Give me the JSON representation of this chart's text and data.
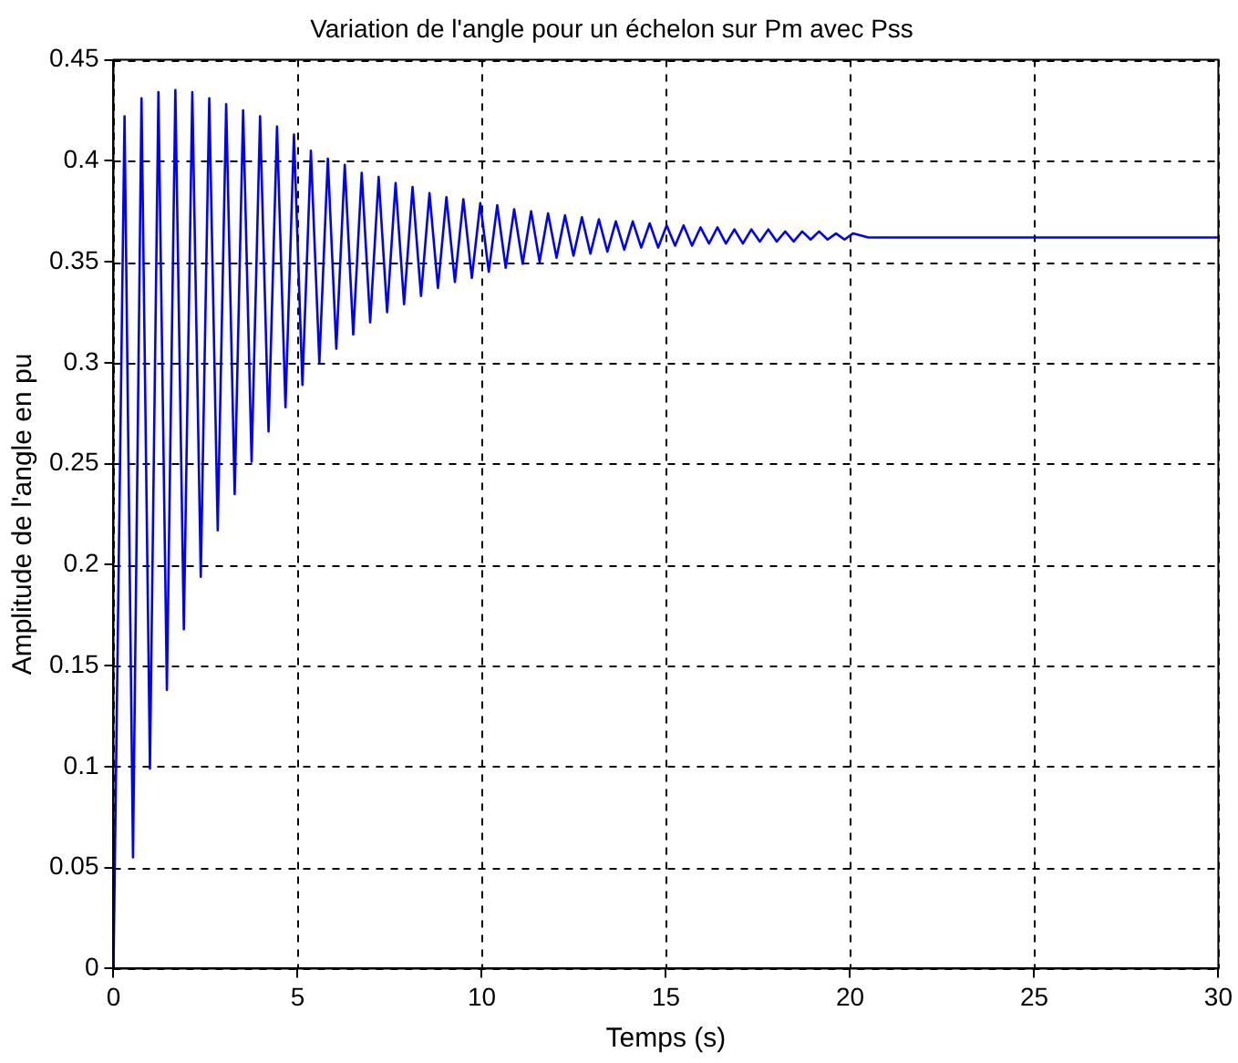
{
  "chart_data": {
    "type": "line",
    "title": "Variation de l'angle pour un échelon sur Pm avec Pss",
    "xlabel": "Temps (s)",
    "ylabel": "Amplitude de l'angle en pu",
    "x": [
      0,
      0.3,
      0.53,
      0.76,
      0.99,
      1.22,
      1.45,
      1.68,
      1.91,
      2.14,
      2.37,
      2.6,
      2.83,
      3.06,
      3.29,
      3.52,
      3.75,
      3.98,
      4.21,
      4.44,
      4.67,
      4.9,
      5.13,
      5.36,
      5.59,
      5.82,
      6.05,
      6.28,
      6.51,
      6.74,
      6.97,
      7.2,
      7.43,
      7.66,
      7.89,
      8.12,
      8.35,
      8.58,
      8.81,
      9.04,
      9.27,
      9.5,
      9.73,
      9.96,
      10.19,
      10.42,
      10.65,
      10.88,
      11.11,
      11.34,
      11.57,
      11.8,
      12.03,
      12.26,
      12.49,
      12.72,
      12.95,
      13.18,
      13.41,
      13.64,
      13.87,
      14.1,
      14.33,
      14.56,
      14.79,
      15.02,
      15.25,
      15.48,
      15.71,
      15.94,
      16.17,
      16.4,
      16.63,
      16.86,
      17.09,
      17.32,
      17.55,
      17.78,
      18.01,
      18.24,
      18.47,
      18.7,
      18.93,
      19.16,
      19.39,
      19.62,
      19.85,
      20.08,
      20.5,
      25,
      30
    ],
    "series": [
      {
        "color": "#0000ff",
        "values": [
          0,
          0.422,
          0.055,
          0.431,
          0.099,
          0.434,
          0.138,
          0.435,
          0.168,
          0.434,
          0.194,
          0.431,
          0.217,
          0.428,
          0.235,
          0.425,
          0.251,
          0.422,
          0.266,
          0.417,
          0.278,
          0.413,
          0.289,
          0.405,
          0.3,
          0.401,
          0.307,
          0.398,
          0.314,
          0.394,
          0.32,
          0.392,
          0.325,
          0.389,
          0.329,
          0.387,
          0.333,
          0.384,
          0.337,
          0.382,
          0.34,
          0.381,
          0.342,
          0.379,
          0.345,
          0.378,
          0.347,
          0.376,
          0.349,
          0.375,
          0.35,
          0.374,
          0.352,
          0.373,
          0.353,
          0.372,
          0.354,
          0.371,
          0.355,
          0.37,
          0.356,
          0.37,
          0.357,
          0.369,
          0.357,
          0.368,
          0.358,
          0.368,
          0.358,
          0.367,
          0.359,
          0.367,
          0.359,
          0.366,
          0.359,
          0.366,
          0.36,
          0.366,
          0.36,
          0.365,
          0.36,
          0.365,
          0.361,
          0.365,
          0.361,
          0.364,
          0.361,
          0.364,
          0.362,
          0.362,
          0.362
        ]
      }
    ],
    "xlim": [
      0,
      30
    ],
    "xticks": [
      0,
      5,
      10,
      15,
      20,
      25,
      30
    ],
    "ylim": [
      0,
      0.45
    ],
    "yticks": [
      0,
      0.05,
      0.1,
      0.15,
      0.2,
      0.25,
      0.3,
      0.35,
      0.4,
      0.45
    ],
    "grid": true,
    "line_style": "solid",
    "marker": "none",
    "legend": false
  }
}
